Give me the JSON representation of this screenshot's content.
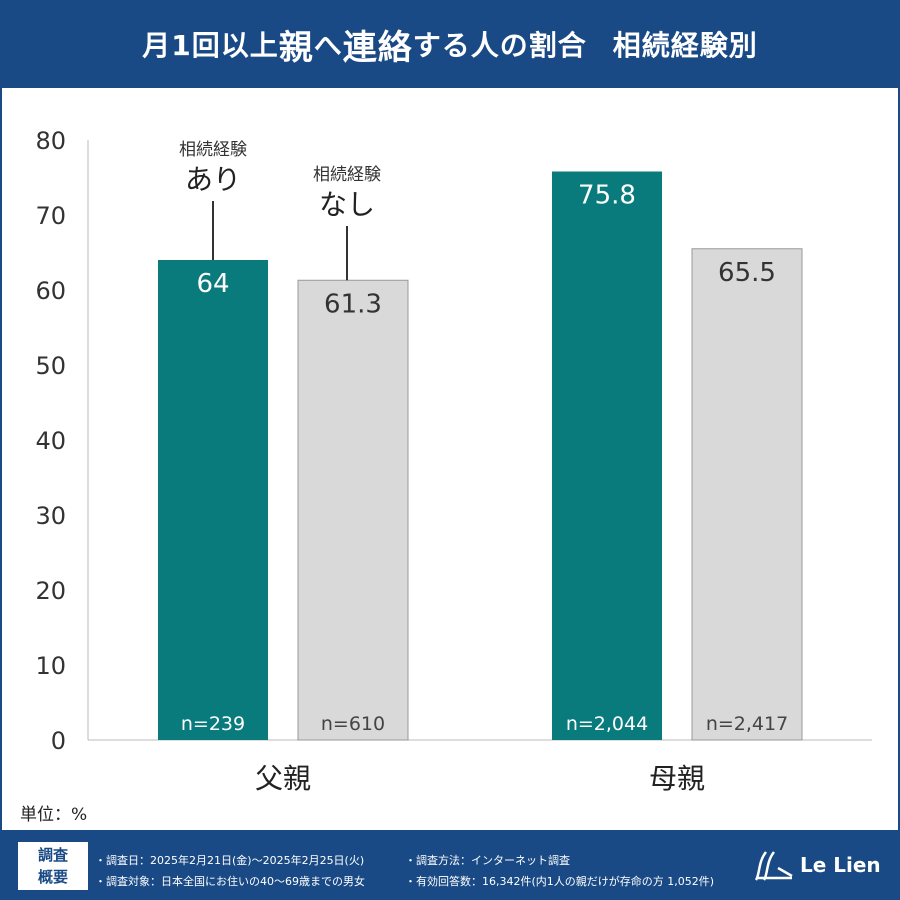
{
  "header": {
    "title_parts": [
      "月1回以上",
      "親",
      "へ",
      "連絡",
      "する人の割合"
    ],
    "subtitle": "相続経験別"
  },
  "unit_label": "単位：%",
  "colors": {
    "header": "#1a4a85",
    "with": "#0a7b7d",
    "without": "#d9d9d9"
  },
  "chart_data": {
    "type": "bar",
    "categories": [
      "父親",
      "母親"
    ],
    "ylim": [
      0,
      80
    ],
    "yticks": [
      0,
      10,
      20,
      30,
      40,
      50,
      60,
      70,
      80
    ],
    "grid": false,
    "series": [
      {
        "name": "相続経験あり",
        "label_top": "相続経験",
        "label_main": "あり",
        "values": [
          64,
          75.8
        ],
        "value_labels": [
          "64",
          "75.8"
        ],
        "n": [
          "n=239",
          "n=2,044"
        ]
      },
      {
        "name": "相続経験なし",
        "label_top": "相続経験",
        "label_main": "なし",
        "values": [
          61.3,
          65.5
        ],
        "value_labels": [
          "61.3",
          "65.5"
        ],
        "n": [
          "n=610",
          "n=2,417"
        ]
      }
    ]
  },
  "footer": {
    "box_label": [
      "調査",
      "概要"
    ],
    "items": [
      "・調査日：2025年2月21日(金)～2025年2月25日(火)",
      "・調査方法：インターネット調査",
      "・調査対象：日本全国にお住いの40～69歳までの男女",
      "・有効回答数：16,342件(内1人の親だけが存命の方 1,052件)"
    ],
    "logo": "Le Lien"
  }
}
